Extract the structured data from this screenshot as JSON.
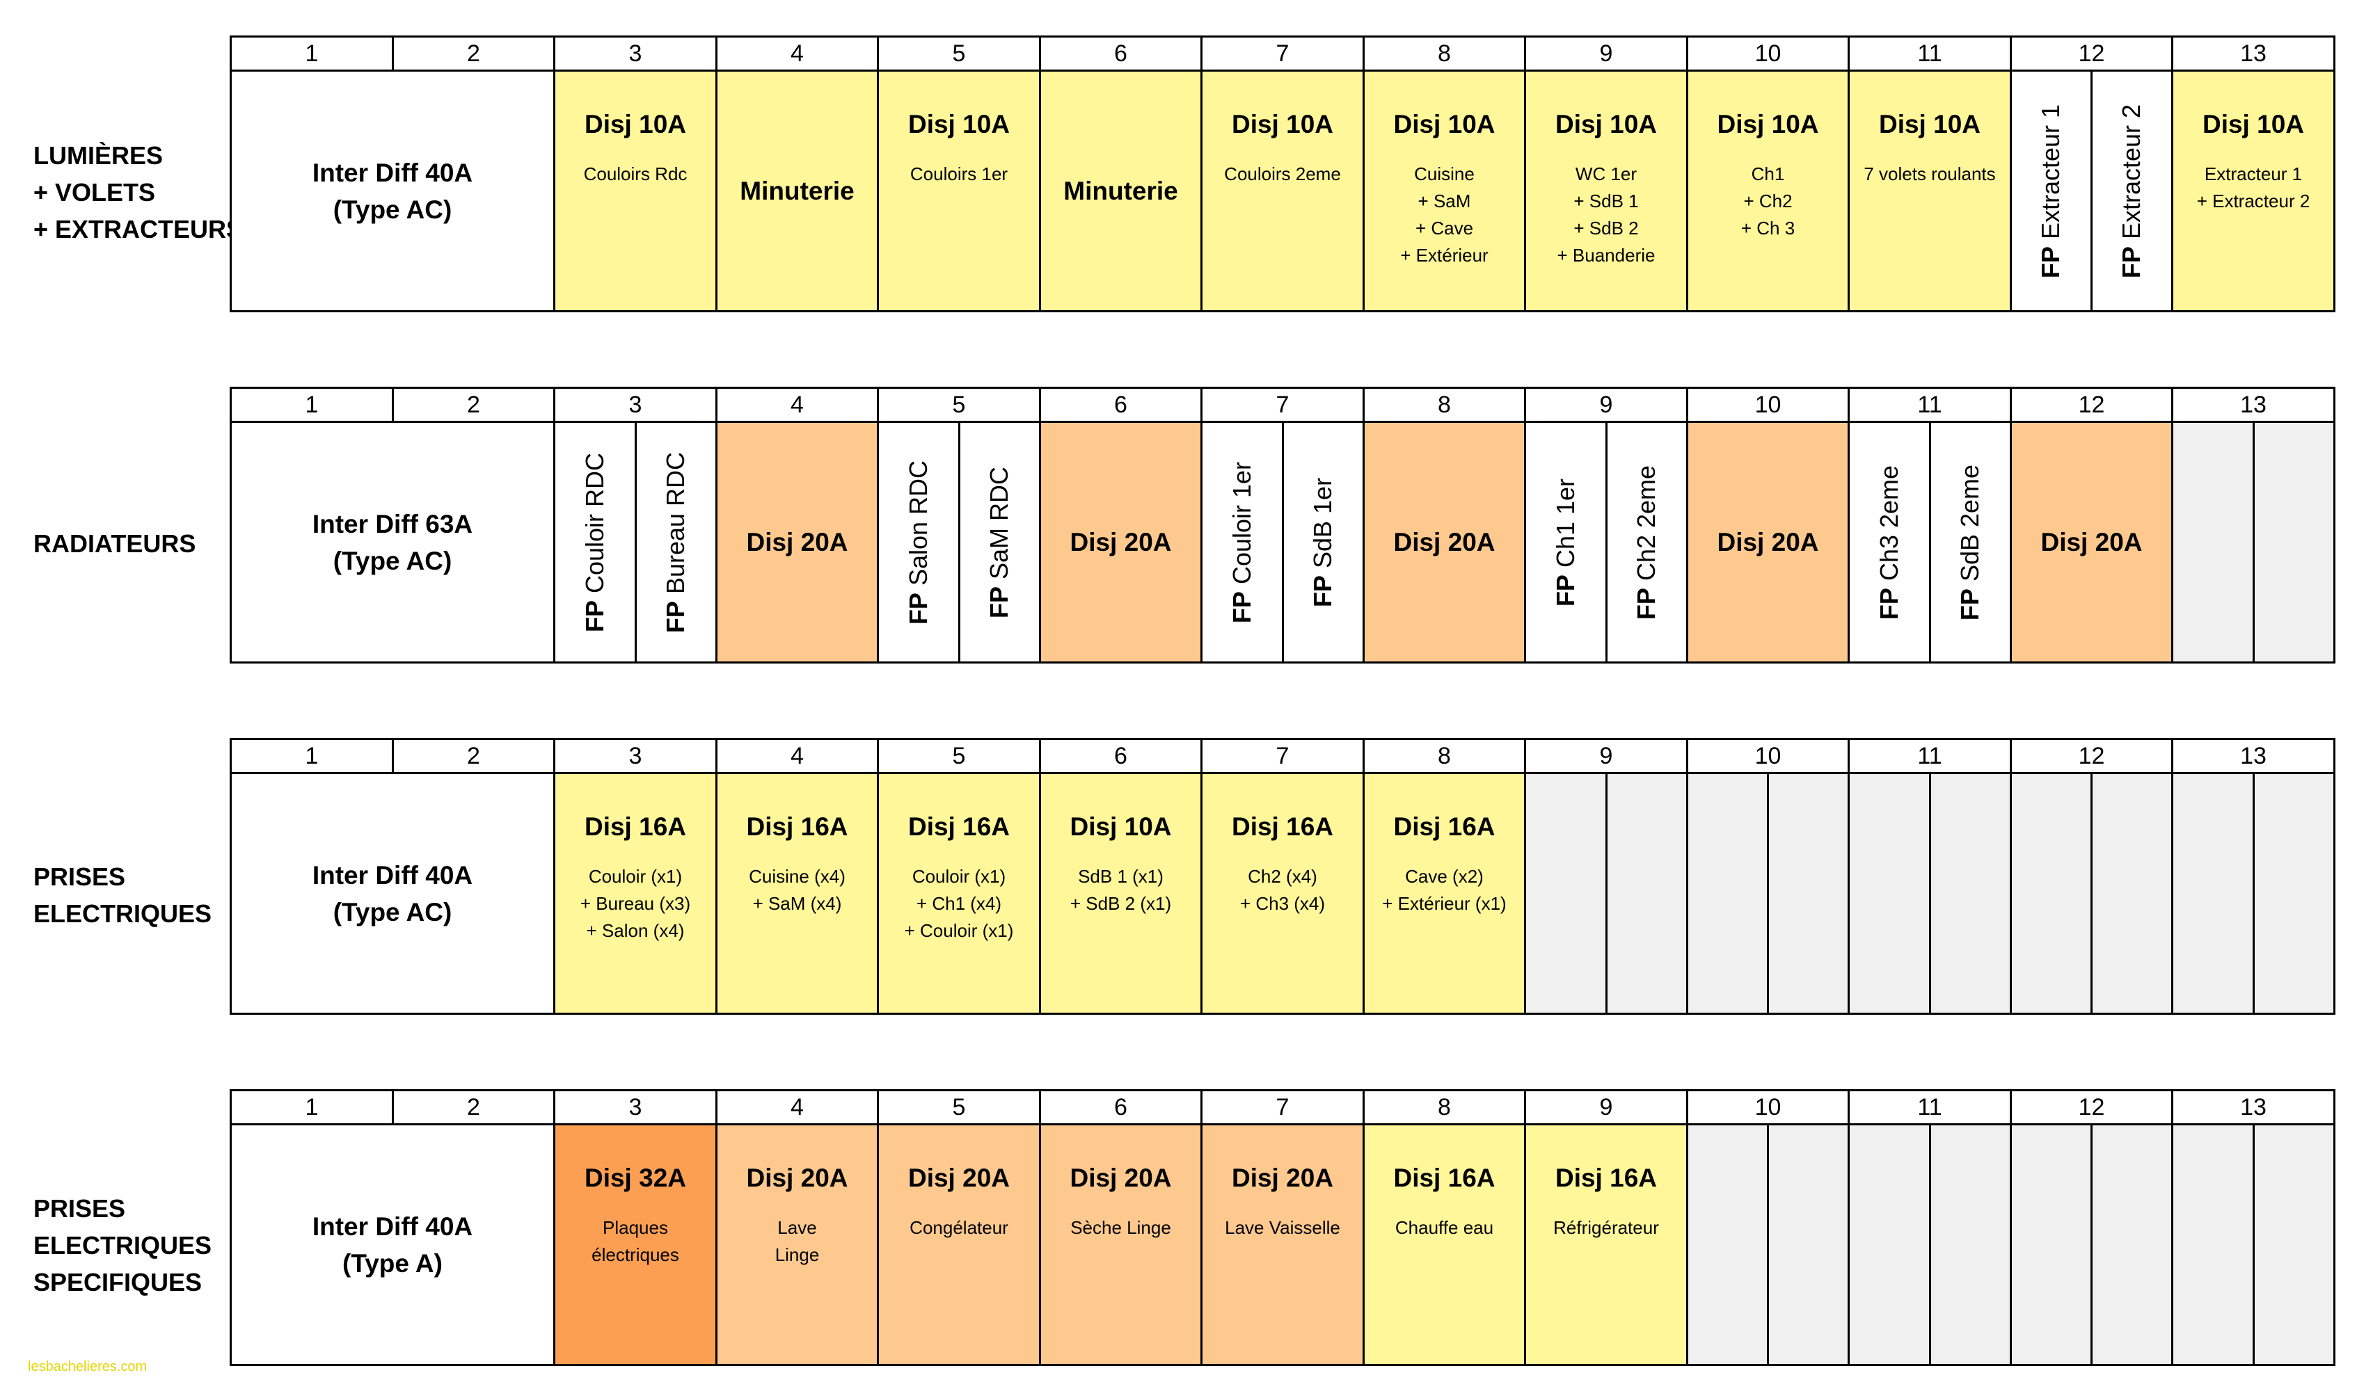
{
  "header_numbers": [
    "1",
    "2",
    "3",
    "4",
    "5",
    "6",
    "7",
    "8",
    "9",
    "10",
    "11",
    "12",
    "13"
  ],
  "rows": [
    {
      "label": [
        "LUMIÈRES",
        "+ VOLETS",
        "+ EXTRACTEURS"
      ],
      "main": [
        "Inter Diff 40A",
        "(Type AC)"
      ],
      "modules": [
        {
          "title": "Disj 10A",
          "sub": "Couloirs Rdc",
          "color": "yellow"
        },
        {
          "title": "Minuterie",
          "sub": "",
          "color": "yellow",
          "center": true
        },
        {
          "title": "Disj 10A",
          "sub": "Couloirs 1er",
          "color": "yellow"
        },
        {
          "title": "Minuterie",
          "sub": "",
          "color": "yellow",
          "center": true
        },
        {
          "title": "Disj 10A",
          "sub": "Couloirs 2eme",
          "color": "yellow"
        },
        {
          "title": "Disj 10A",
          "sub": "Cuisine\n+ SaM\n+ Cave\n+ Extérieur",
          "color": "yellow"
        },
        {
          "title": "Disj 10A",
          "sub": "WC 1er\n+ SdB 1\n+ SdB 2\n+ Buanderie",
          "color": "yellow"
        },
        {
          "title": "Disj 10A",
          "sub": "Ch1\n+ Ch2\n+ Ch 3",
          "color": "yellow"
        },
        {
          "title": "Disj 10A",
          "sub": "7 volets roulants",
          "color": "yellow"
        },
        {
          "split": [
            {
              "fp": "FP",
              "name": "Extracteur 1"
            },
            {
              "fp": "FP",
              "name": "Extracteur 2"
            }
          ]
        },
        {
          "title": "Disj 10A",
          "sub": "Extracteur 1\n+ Extracteur 2",
          "color": "yellow"
        }
      ]
    },
    {
      "label": [
        "RADIATEURS"
      ],
      "main": [
        "Inter Diff 63A",
        "(Type AC)"
      ],
      "modules": [
        {
          "split": [
            {
              "fp": "FP",
              "name": "Couloir RDC"
            },
            {
              "fp": "FP",
              "name": "Bureau RDC"
            }
          ]
        },
        {
          "title": "Disj 20A",
          "sub": "",
          "color": "orange",
          "center": true
        },
        {
          "split": [
            {
              "fp": "FP",
              "name": "Salon RDC"
            },
            {
              "fp": "FP",
              "name": "SaM RDC"
            }
          ]
        },
        {
          "title": "Disj 20A",
          "sub": "",
          "color": "orange",
          "center": true
        },
        {
          "split": [
            {
              "fp": "FP",
              "name": "Couloir 1er"
            },
            {
              "fp": "FP",
              "name": "SdB 1er"
            }
          ]
        },
        {
          "title": "Disj 20A",
          "sub": "",
          "color": "orange",
          "center": true
        },
        {
          "split": [
            {
              "fp": "FP",
              "name": "Ch1 1er"
            },
            {
              "fp": "FP",
              "name": "Ch2 2eme"
            }
          ]
        },
        {
          "title": "Disj 20A",
          "sub": "",
          "color": "orange",
          "center": true
        },
        {
          "split": [
            {
              "fp": "FP",
              "name": "Ch3 2eme"
            },
            {
              "fp": "FP",
              "name": "SdB 2eme"
            }
          ]
        },
        {
          "title": "Disj 20A",
          "sub": "",
          "color": "orange",
          "center": true
        },
        {
          "empty": true
        }
      ]
    },
    {
      "label": [
        "PRISES",
        "ELECTRIQUES"
      ],
      "main": [
        "Inter Diff 40A",
        "(Type AC)"
      ],
      "modules": [
        {
          "title": "Disj 16A",
          "sub": "Couloir (x1)\n+ Bureau (x3)\n+ Salon (x4)",
          "color": "yellow"
        },
        {
          "title": "Disj 16A",
          "sub": "Cuisine (x4)\n+ SaM (x4)",
          "color": "yellow"
        },
        {
          "title": "Disj 16A",
          "sub": "Couloir (x1)\n+ Ch1 (x4)\n+ Couloir (x1)",
          "color": "yellow"
        },
        {
          "title": "Disj 10A",
          "sub": "SdB 1 (x1)\n+ SdB 2 (x1)",
          "color": "yellow"
        },
        {
          "title": "Disj 16A",
          "sub": "Ch2 (x4)\n+ Ch3 (x4)",
          "color": "yellow"
        },
        {
          "title": "Disj 16A",
          "sub": "Cave (x2)\n+ Extérieur (x1)",
          "color": "yellow"
        },
        {
          "empty": true
        },
        {
          "empty": true
        },
        {
          "empty": true
        },
        {
          "empty": true
        },
        {
          "empty": true
        }
      ]
    },
    {
      "label": [
        "PRISES",
        "ELECTRIQUES",
        "SPECIFIQUES"
      ],
      "main": [
        "Inter Diff 40A",
        "(Type A)"
      ],
      "modules": [
        {
          "title": "Disj 32A",
          "sub": "Plaques\nélectriques",
          "color": "dark"
        },
        {
          "title": "Disj 20A",
          "sub": "Lave\nLinge",
          "color": "orange"
        },
        {
          "title": "Disj 20A",
          "sub": "Congélateur",
          "color": "orange"
        },
        {
          "title": "Disj 20A",
          "sub": "Sèche Linge",
          "color": "orange"
        },
        {
          "title": "Disj 20A",
          "sub": "Lave Vaisselle",
          "color": "orange"
        },
        {
          "title": "Disj 16A",
          "sub": "Chauffe eau",
          "color": "yellow"
        },
        {
          "title": "Disj 16A",
          "sub": "Réfrigérateur",
          "color": "yellow"
        },
        {
          "empty": true
        },
        {
          "empty": true
        },
        {
          "empty": true
        },
        {
          "empty": true
        }
      ]
    }
  ],
  "colors": {
    "yellow": "#fff799",
    "orange": "#fdc98e",
    "dark": "#fd9f53",
    "empty": "#f0f0f0"
  },
  "footer": "lesbachelieres.com"
}
